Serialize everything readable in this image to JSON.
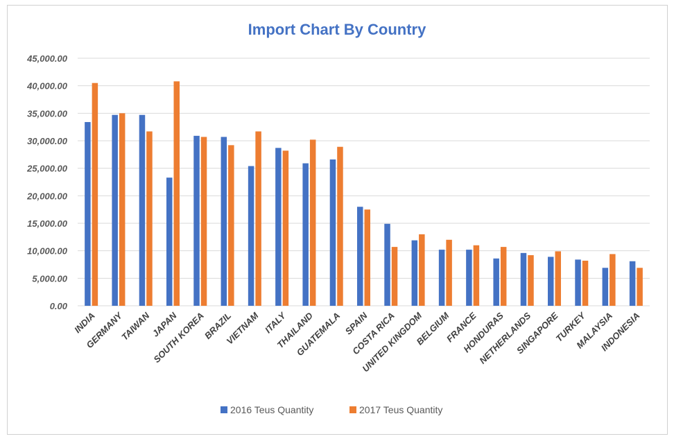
{
  "chart_data": {
    "type": "bar",
    "title": "Import Chart By Country",
    "xlabel": "",
    "ylabel": "",
    "ylim": [
      0,
      45000
    ],
    "ytick_step": 5000,
    "ytick_labels": [
      "0.00",
      "5,000.00",
      "10,000.00",
      "15,000.00",
      "20,000.00",
      "25,000.00",
      "30,000.00",
      "35,000.00",
      "40,000.00",
      "45,000.00"
    ],
    "grid": true,
    "legend_position": "bottom",
    "categories": [
      "INDIA",
      "GERMANY",
      "TAIWAN",
      "JAPAN",
      "SOUTH KOREA",
      "BRAZIL",
      "VIETNAM",
      "ITALY",
      "THAILAND",
      "GUATEMALA",
      "SPAIN",
      "COSTA RICA",
      "UNITED KINGDOM",
      "BELGIUM",
      "FRANCE",
      "HONDURAS",
      "NETHERLANDS",
      "SINGAPORE",
      "TURKEY",
      "MALAYSIA",
      "INDONESIA"
    ],
    "series": [
      {
        "name": "2016 Teus Quantity",
        "color": "#4472c4",
        "values": [
          33400,
          34700,
          34700,
          23300,
          30900,
          30700,
          25400,
          28700,
          25900,
          26600,
          18000,
          14900,
          11900,
          10200,
          10200,
          8600,
          9600,
          8900,
          8400,
          6900,
          8100
        ]
      },
      {
        "name": "2017 Teus Quantity",
        "color": "#ed7d31",
        "values": [
          40500,
          35000,
          31700,
          40800,
          30700,
          29200,
          31700,
          28200,
          30200,
          28900,
          17500,
          10700,
          13000,
          12000,
          11000,
          10700,
          9200,
          9900,
          8200,
          9400,
          6900
        ]
      }
    ]
  }
}
